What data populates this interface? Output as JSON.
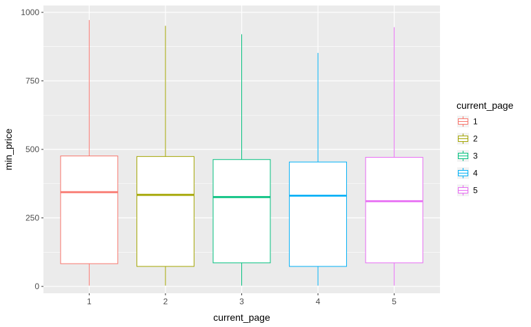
{
  "chart_data": {
    "type": "boxplot",
    "xlabel": "current_page",
    "ylabel": "min_price",
    "categories": [
      "1",
      "2",
      "3",
      "4",
      "5"
    ],
    "y_ticks": [
      0,
      250,
      500,
      750,
      1000
    ],
    "ylim": [
      -25,
      1025
    ],
    "grid": true,
    "legend": {
      "title": "current_page",
      "position": "right",
      "entries": [
        "1",
        "2",
        "3",
        "4",
        "5"
      ]
    },
    "colors": [
      "#F8766D",
      "#A3A500",
      "#00BF7D",
      "#00B0F6",
      "#E76BF3"
    ],
    "series": [
      {
        "name": "1",
        "min": 3,
        "q1": 83,
        "median": 344,
        "q3": 476,
        "max": 972
      },
      {
        "name": "2",
        "min": 3,
        "q1": 73,
        "median": 334,
        "q3": 474,
        "max": 951
      },
      {
        "name": "3",
        "min": 3,
        "q1": 86,
        "median": 326,
        "q3": 463,
        "max": 920
      },
      {
        "name": "4",
        "min": 3,
        "q1": 73,
        "median": 331,
        "q3": 454,
        "max": 852
      },
      {
        "name": "5",
        "min": 3,
        "q1": 86,
        "median": 311,
        "q3": 471,
        "max": 946
      }
    ]
  }
}
